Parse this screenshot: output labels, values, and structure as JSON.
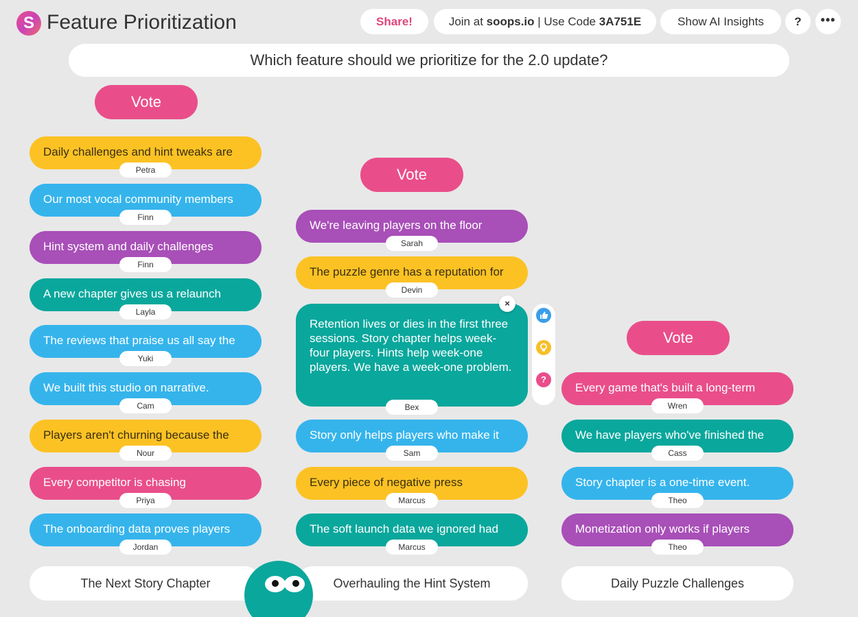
{
  "app": {
    "logo_letter": "S",
    "title": "Feature Prioritization"
  },
  "header": {
    "share_label": "Share!",
    "join_prefix": "Join at ",
    "join_site": "soops.io",
    "join_middle": " | Use Code ",
    "join_code": "3A751E",
    "insights_label": "Show AI Insights",
    "help_label": "?",
    "more_label": "•••"
  },
  "question": "Which feature should we prioritize for the 2.0 update?",
  "columns": [
    {
      "name": "The Next Story Chapter",
      "vote_label": "Vote",
      "cards": [
        {
          "text": "Daily challenges and hint tweaks are",
          "author": "Petra",
          "color": "yellow"
        },
        {
          "text": "Our most vocal community members",
          "author": "Finn",
          "color": "blue"
        },
        {
          "text": "Hint system and daily challenges",
          "author": "Finn",
          "color": "purple"
        },
        {
          "text": "A new chapter gives us a relaunch",
          "author": "Layla",
          "color": "teal"
        },
        {
          "text": "The reviews that praise us all say the",
          "author": "Yuki",
          "color": "blue"
        },
        {
          "text": "We built this studio on narrative.",
          "author": "Cam",
          "color": "blue"
        },
        {
          "text": "Players aren't churning because the",
          "author": "Nour",
          "color": "yellow"
        },
        {
          "text": "Every competitor is chasing",
          "author": "Priya",
          "color": "pink"
        },
        {
          "text": "The onboarding data proves players",
          "author": "Jordan",
          "color": "blue"
        }
      ]
    },
    {
      "name": "Overhauling the Hint System",
      "vote_label": "Vote",
      "cards": [
        {
          "text": "We're leaving players on the floor",
          "author": "Sarah",
          "color": "purple"
        },
        {
          "text": "The puzzle genre has a reputation for",
          "author": "Devin",
          "color": "yellow"
        },
        {
          "text": "Retention lives or dies in the first three sessions. Story chapter helps week-four players. Hints help week-one players. We have a week-one problem.",
          "author": "Bex",
          "color": "teal",
          "expanded": true
        },
        {
          "text": "Story only helps players who make it",
          "author": "Sam",
          "color": "blue"
        },
        {
          "text": "Every piece of negative press",
          "author": "Marcus",
          "color": "yellow"
        },
        {
          "text": "The soft launch data we ignored had",
          "author": "Marcus",
          "color": "teal"
        }
      ]
    },
    {
      "name": "Daily Puzzle Challenges",
      "vote_label": "Vote",
      "cards": [
        {
          "text": "Every game that's built a long-term",
          "author": "Wren",
          "color": "pink"
        },
        {
          "text": "We have players who've finished the",
          "author": "Cass",
          "color": "teal"
        },
        {
          "text": "Story chapter is a one-time event.",
          "author": "Theo",
          "color": "blue"
        },
        {
          "text": "Monetization only works if players",
          "author": "Theo",
          "color": "purple"
        }
      ]
    }
  ],
  "expanded_card_actions": {
    "close_label": "×",
    "like_icon": "thumbs-up-icon",
    "idea_icon": "lightbulb-icon",
    "question_icon": "question-icon",
    "question_label": "?"
  },
  "colors": {
    "pink": "#e94e8a",
    "yellow": "#fcc224",
    "blue": "#35b4ec",
    "purple": "#a84fb8",
    "teal": "#0aa79c",
    "background": "#e8e8e8"
  }
}
